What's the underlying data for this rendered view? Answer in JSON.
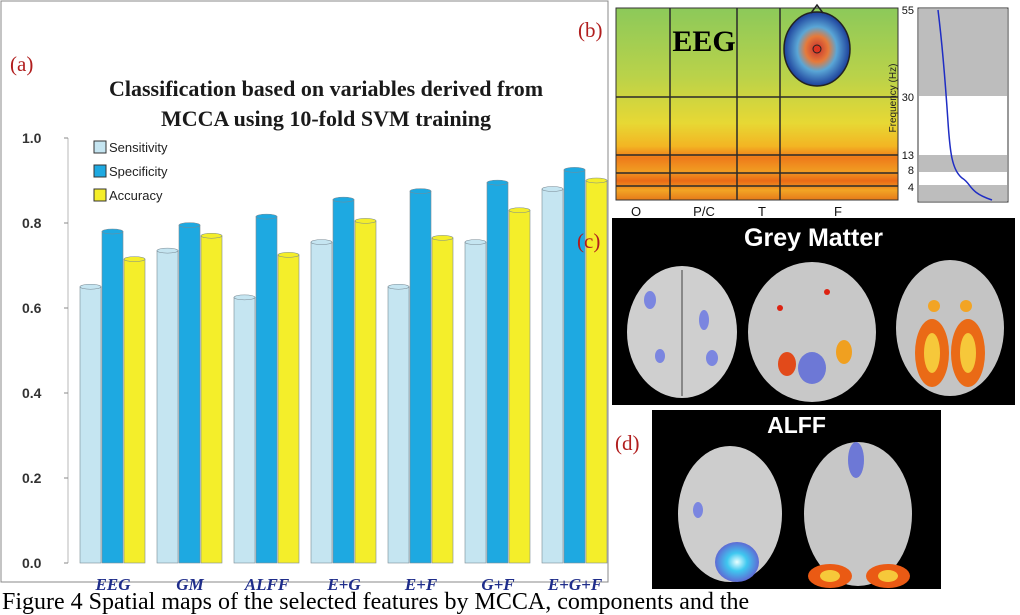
{
  "panels": {
    "a": "(a)",
    "b": "(b)",
    "c": "(c)",
    "d": "(d)"
  },
  "chart_data": [
    {
      "type": "bar",
      "title": "Classification based on variables derived from MCCA using  10-fold SVM training",
      "title_lines": [
        "Classification based on variables derived from",
        "MCCA using  10-fold SVM training"
      ],
      "categories": [
        "EEG",
        "GM",
        "ALFF",
        "E+G",
        "E+F",
        "G+F",
        "E+G+F"
      ],
      "series": [
        {
          "name": "Sensitivity",
          "color": "#c5e5f1",
          "values": [
            0.65,
            0.735,
            0.625,
            0.755,
            0.65,
            0.755,
            0.88
          ]
        },
        {
          "name": "Specificity",
          "color": "#1ea9e1",
          "values": [
            0.78,
            0.795,
            0.815,
            0.855,
            0.875,
            0.895,
            0.925
          ]
        },
        {
          "name": "Accuracy",
          "color": "#f4ee2a",
          "values": [
            0.715,
            0.77,
            0.725,
            0.805,
            0.765,
            0.83,
            0.9
          ]
        }
      ],
      "ylim": [
        0,
        1
      ],
      "yticks": [
        "0.0",
        "0.2",
        "0.4",
        "0.6",
        "0.8",
        "1.0"
      ],
      "xlabel": "",
      "ylabel": "",
      "legend": "top-left",
      "grid": false
    },
    {
      "type": "heatmap",
      "title": "EEG",
      "xtick_labels": [
        "O",
        "P/C",
        "T",
        "F"
      ],
      "side_plot_ylabel": "Frequency (Hz)",
      "side_plot_yticks": [
        "55",
        "30",
        "13",
        "8",
        "4"
      ],
      "frequency_bands_hz": [
        4,
        8,
        13,
        30,
        55
      ]
    }
  ],
  "images": {
    "grey_matter_title": "Grey Matter",
    "alff_title": "ALFF"
  },
  "caption": "Figure 4  Spatial maps of the selected features by MCCA, components and the"
}
